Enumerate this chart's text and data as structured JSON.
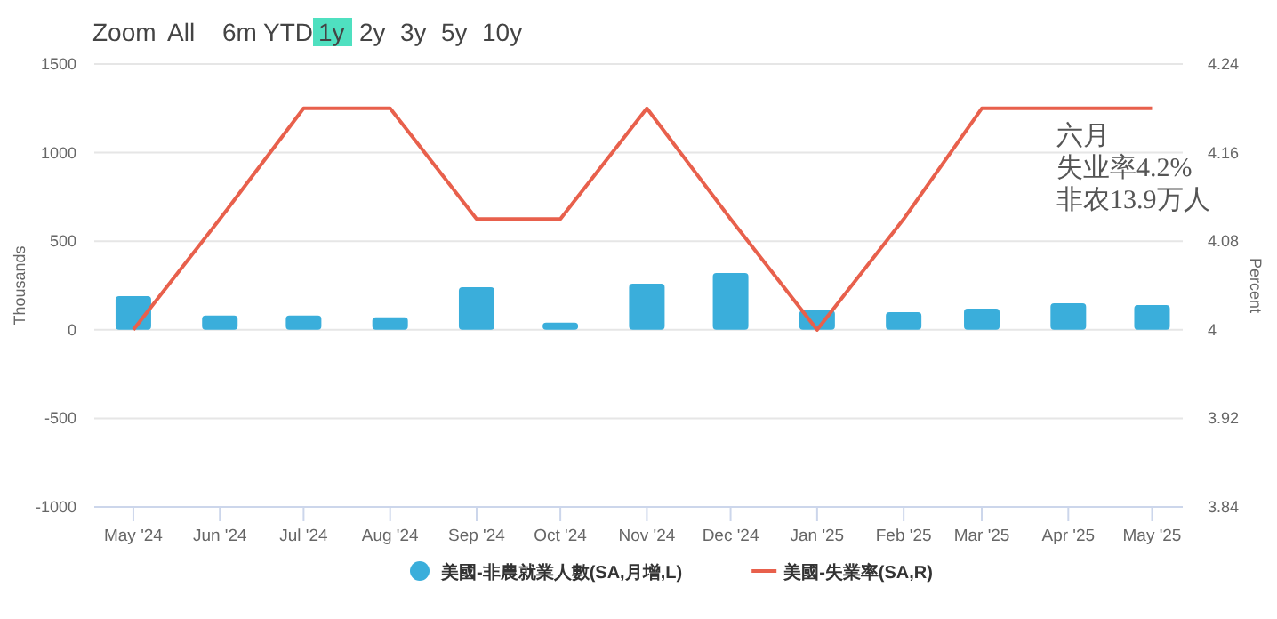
{
  "chart_data": {
    "type": "bar",
    "x": [
      "2024-05",
      "2024-06",
      "2024-07",
      "2024-08",
      "2024-09",
      "2024-10",
      "2024-11",
      "2024-12",
      "2025-01",
      "2025-02",
      "2025-03",
      "2025-04",
      "2025-05"
    ],
    "xlim": [
      "2024-04-17",
      "2025-05-12"
    ],
    "xticks": [
      {
        "value": "2024-05",
        "label": "May '24"
      },
      {
        "value": "2024-06",
        "label": "Jun '24"
      },
      {
        "value": "2024-07",
        "label": "Jul '24"
      },
      {
        "value": "2024-08",
        "label": "Aug '24"
      },
      {
        "value": "2024-09",
        "label": "Sep '24"
      },
      {
        "value": "2024-10",
        "label": "Oct '24"
      },
      {
        "value": "2024-11",
        "label": "Nov '24"
      },
      {
        "value": "2024-12",
        "label": "Dec '24"
      },
      {
        "value": "2025-01",
        "label": "Jan '25"
      },
      {
        "value": "2025-02",
        "label": "Feb '25"
      },
      {
        "value": "2025-03",
        "label": "Mar '25"
      },
      {
        "value": "2025-04",
        "label": "Apr '25"
      },
      {
        "value": "2025-05",
        "label": "May '25"
      }
    ],
    "ylabel": "Thousands",
    "y2label": "Percent",
    "ylim": [
      -1000,
      1500
    ],
    "yticks": [
      -1000,
      -500,
      0,
      500,
      1000,
      1500
    ],
    "y2lim": [
      3.84,
      4.24
    ],
    "y2ticks": [
      3.84,
      3.92,
      4,
      4.08,
      4.16,
      4.24
    ],
    "grid": "y",
    "legend": "bottom",
    "marker": "none",
    "line_style": "solid",
    "series": [
      {
        "name": "美國-非農就業人數(SA,月增,L)",
        "color": "#3aaedb",
        "values": [
          190,
          80,
          80,
          70,
          240,
          40,
          260,
          320,
          110,
          100,
          120,
          150,
          140
        ]
      },
      {
        "name": "美國-失業率(SA,R)",
        "type": "line",
        "axis": "y2",
        "color": "#e8604c",
        "values": [
          4.0,
          4.1,
          4.2,
          4.2,
          4.1,
          4.1,
          4.2,
          4.1,
          4.0,
          4.1,
          4.2,
          4.2,
          4.2
        ]
      }
    ],
    "annotations": [
      "Zoom All 6m YTD 1y 2y 3y 5y 10y",
      "六月",
      "失业率4.2%",
      "非农13.9万人"
    ]
  }
}
